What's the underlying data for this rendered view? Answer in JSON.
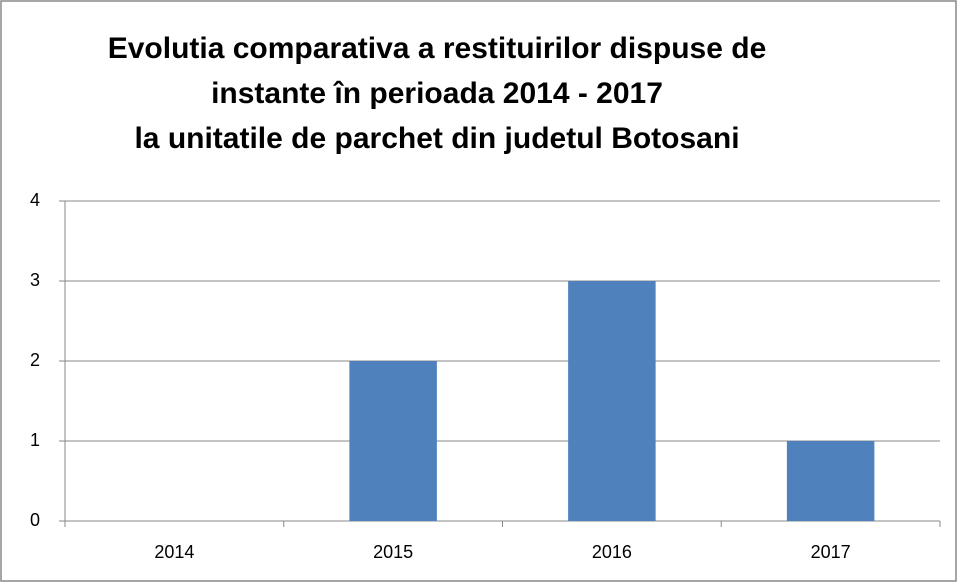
{
  "chart_data": {
    "type": "bar",
    "title": [
      "Evolutia comparativa a restituirilor dispuse de",
      "instante în perioada 2014 - 2017",
      "la unitatile de parchet din judetul Botosani"
    ],
    "categories": [
      "2014",
      "2015",
      "2016",
      "2017"
    ],
    "values": [
      0,
      2,
      3,
      1
    ],
    "color": "#4f81bd",
    "ylim": [
      0,
      4
    ],
    "yticks": [
      0,
      1,
      2,
      3,
      4
    ],
    "grid": true
  }
}
